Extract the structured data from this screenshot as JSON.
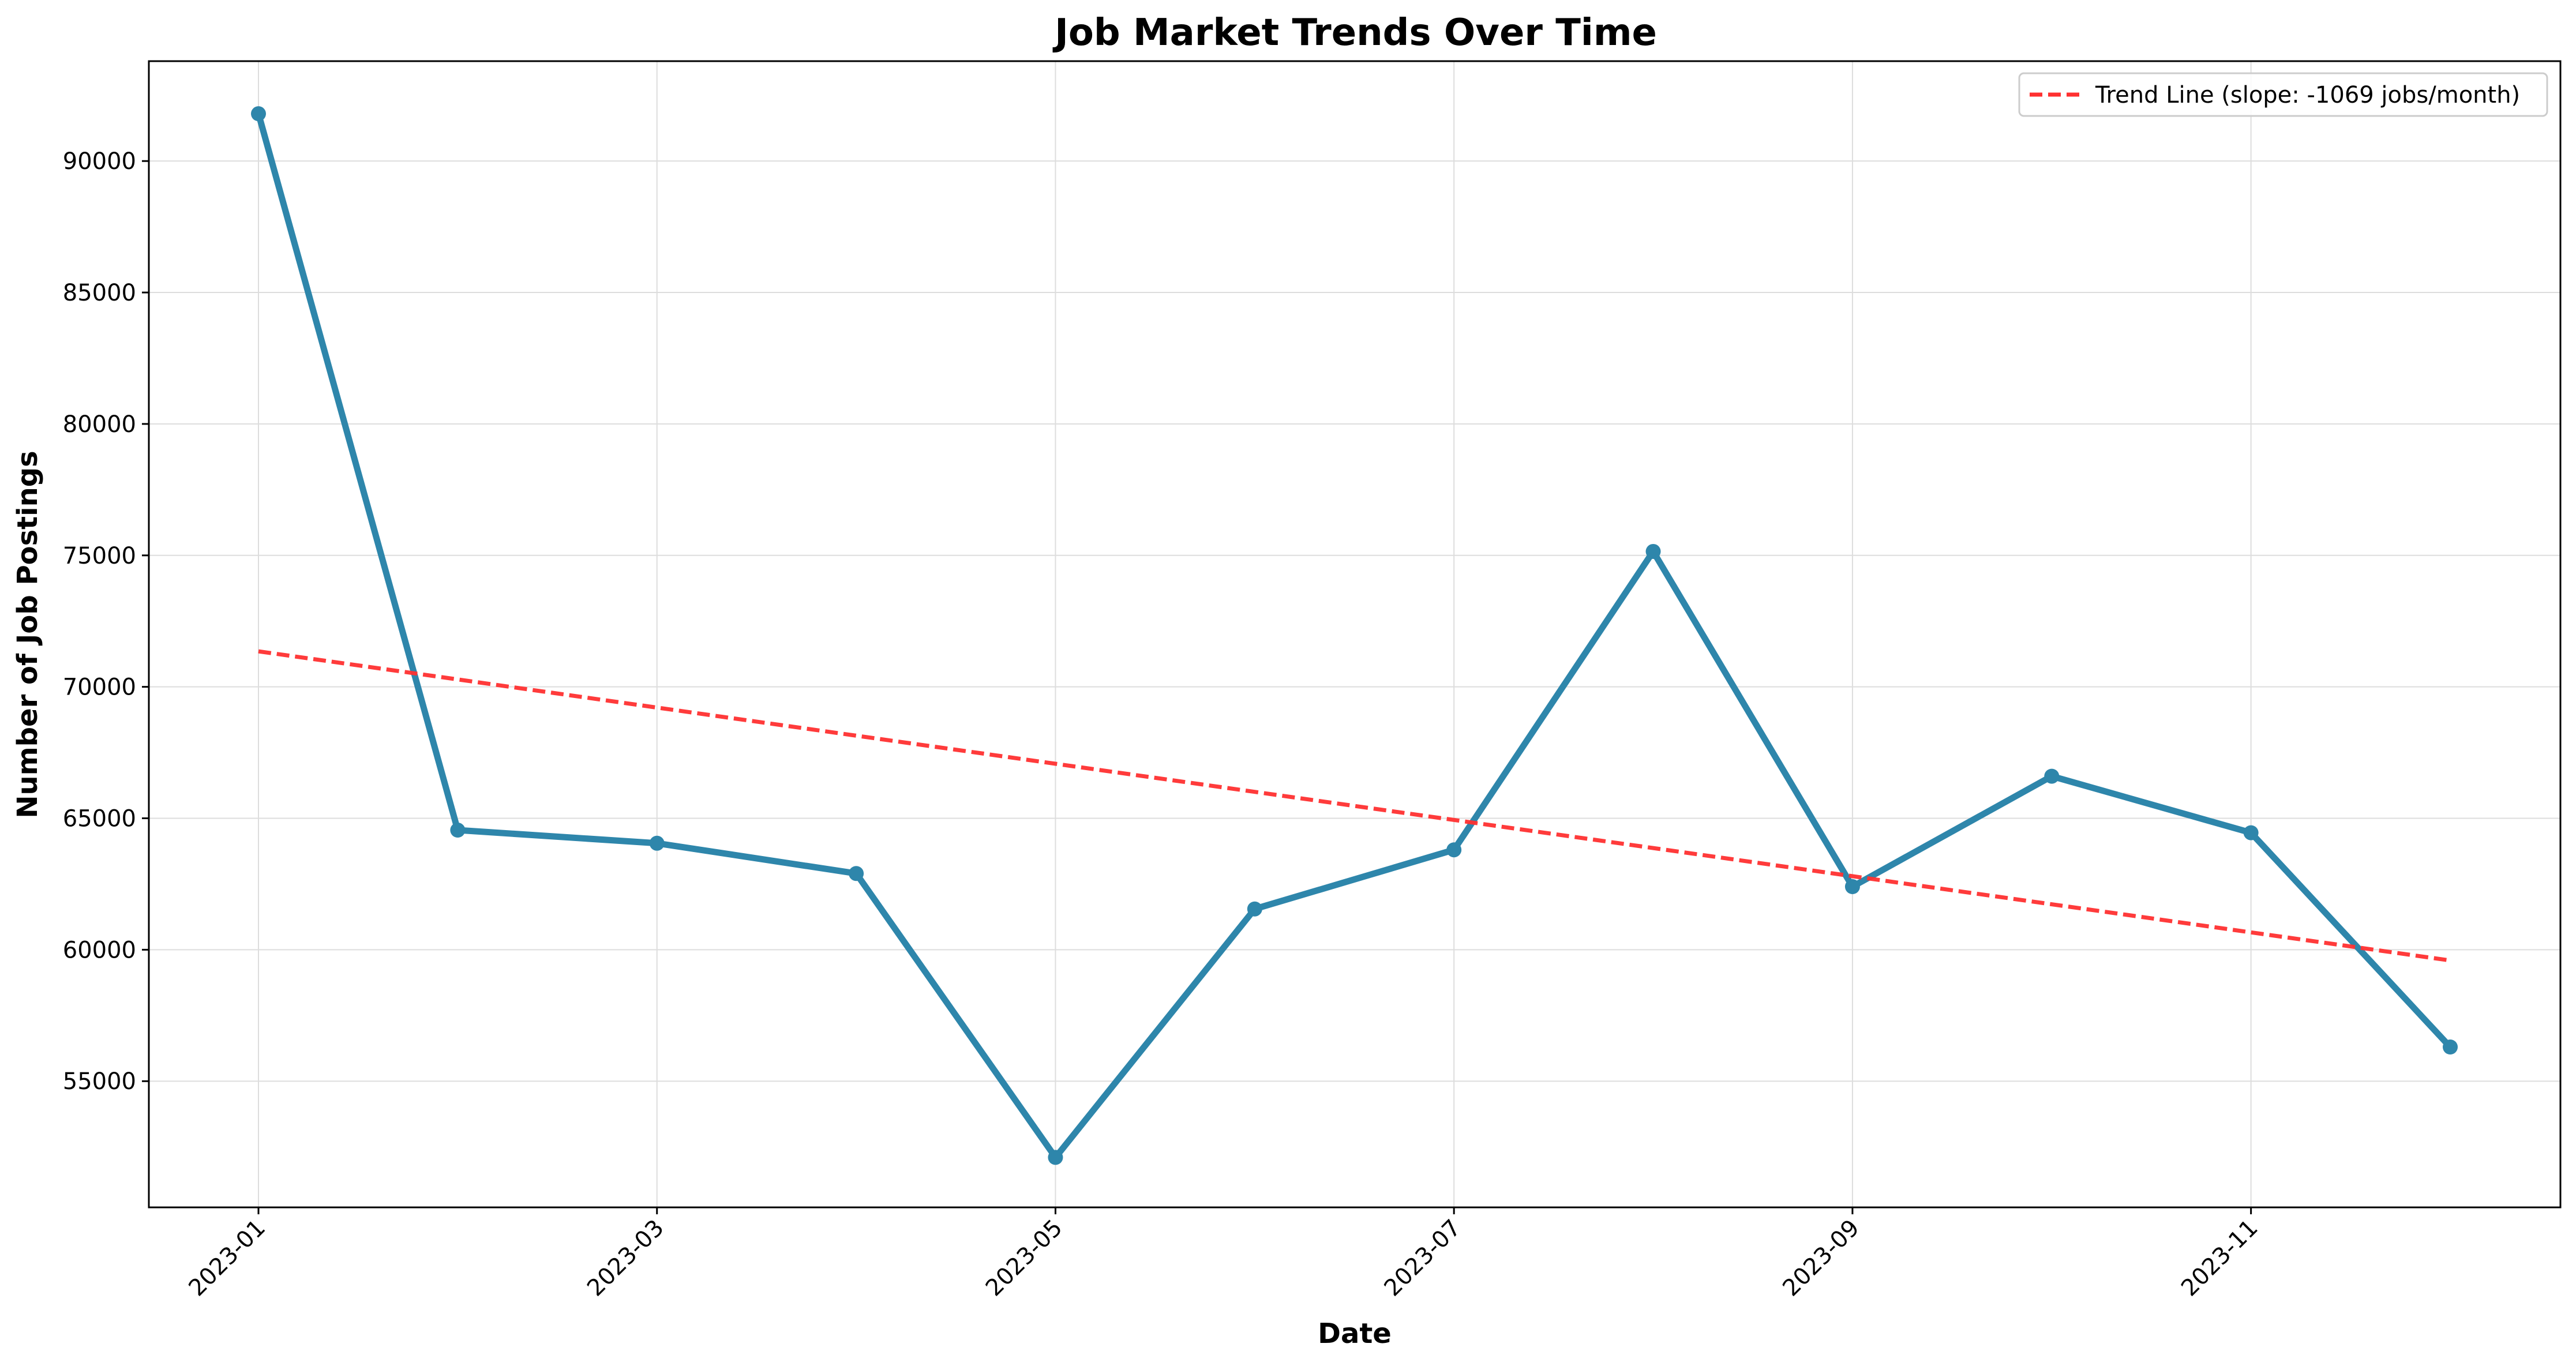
{
  "chart_data": {
    "type": "line",
    "title": "Job Market Trends Over Time",
    "xlabel": "Date",
    "ylabel": "Number of Job Postings",
    "x": [
      "2023-01",
      "2023-02",
      "2023-03",
      "2023-04",
      "2023-05",
      "2023-06",
      "2023-07",
      "2023-08",
      "2023-09",
      "2023-10",
      "2023-11",
      "2023-12"
    ],
    "x_ticks": [
      "2023-01",
      "2023-03",
      "2023-05",
      "2023-07",
      "2023-09",
      "2023-11"
    ],
    "y_ticks": [
      55000,
      60000,
      65000,
      70000,
      75000,
      80000,
      85000,
      90000
    ],
    "ylim": [
      50200,
      93800
    ],
    "grid": true,
    "legend_position": "top-right",
    "series": [
      {
        "values": [
          91800,
          64550,
          64050,
          62900,
          52100,
          61550,
          63800,
          75150,
          62400,
          66600,
          64450,
          56300
        ],
        "color": "#2e86ab",
        "style": "solid",
        "markers": true
      },
      {
        "name": "Trend Line (slope: -1069 jobs/month)",
        "values": [
          71350,
          70281,
          69212,
          68143,
          67074,
          66005,
          64936,
          63867,
          62798,
          61729,
          60660,
          59591
        ],
        "color": "#ff3030",
        "style": "dashed",
        "markers": false
      }
    ]
  }
}
